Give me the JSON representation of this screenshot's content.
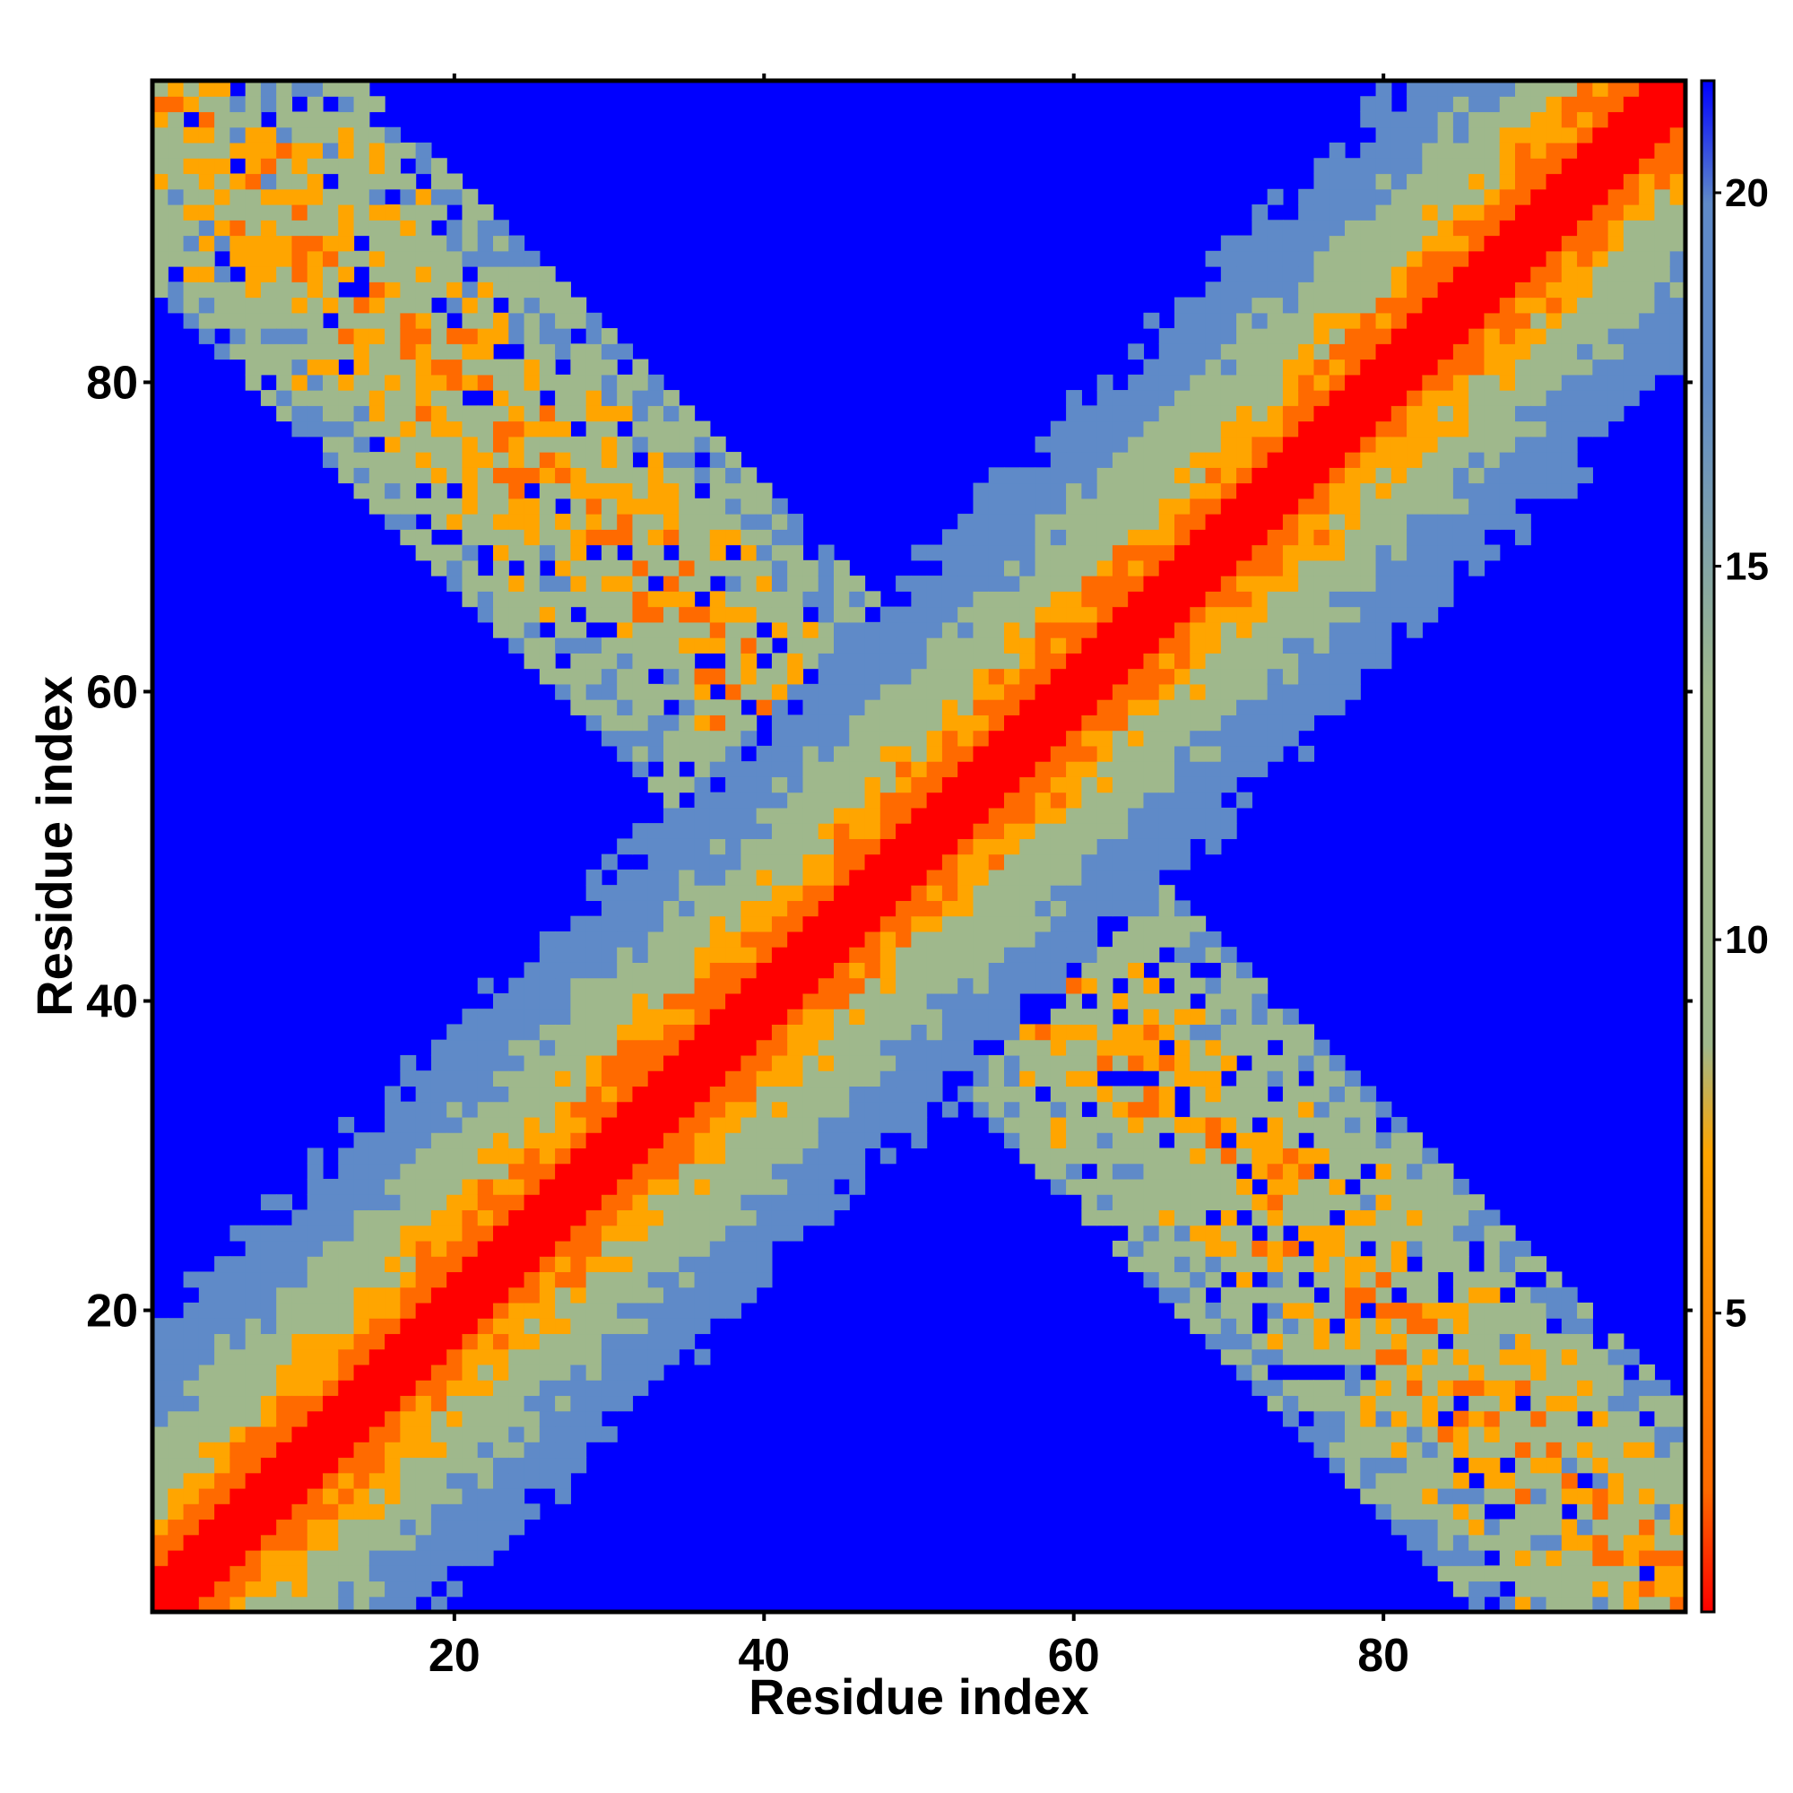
{
  "chart_data": {
    "type": "heatmap",
    "title": "",
    "xlabel": "Residue index",
    "ylabel": "Residue index",
    "xlim": [
      1,
      99
    ],
    "ylim": [
      1,
      99
    ],
    "grid": false,
    "x_ticks": [
      20,
      40,
      60,
      80
    ],
    "y_ticks": [
      20,
      40,
      60,
      80
    ],
    "x_tick_labels": [
      "20",
      "40",
      "60",
      "80"
    ],
    "y_tick_labels": [
      "20",
      "40",
      "60",
      "80"
    ],
    "colorbar": {
      "range": [
        1,
        21.5
      ],
      "ticks": [
        5,
        10,
        15,
        20
      ],
      "tick_labels": [
        "5",
        "10",
        "15",
        "20"
      ],
      "placement": "right",
      "colors": {
        "lowest": "#ff0000",
        "low": "#ff6a00",
        "orange": "#ffa500",
        "mid": "#9fb88c",
        "high": "#5f8ac8",
        "max": "#0000ff"
      }
    },
    "matrix_description": {
      "main_diagonal": {
        "from": [
          1,
          1
        ],
        "to": [
          99,
          99
        ],
        "center_value": 1
      },
      "anti_diagonal_arms": [
        {
          "from": [
            1,
            99
          ],
          "to": [
            50,
            50
          ],
          "min_value": 6
        },
        {
          "from": [
            50,
            50
          ],
          "to": [
            99,
            1
          ],
          "min_value": 6
        }
      ],
      "background_value": 21.5
    }
  }
}
